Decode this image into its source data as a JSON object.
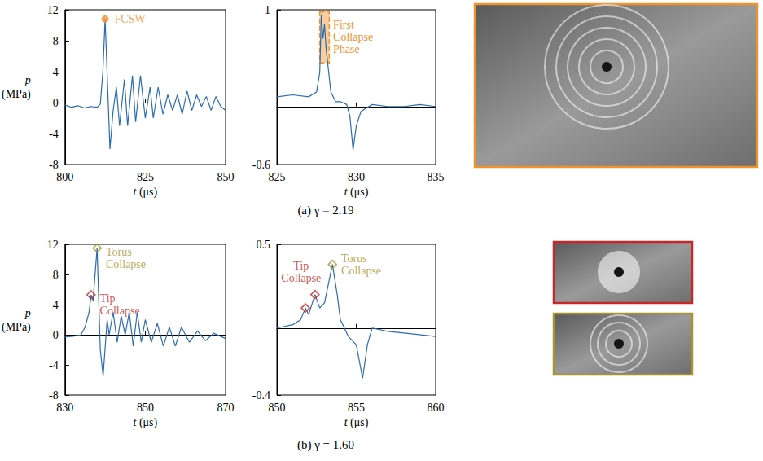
{
  "chart_data": [
    {
      "type": "line",
      "color": "#2b6cb0",
      "grid": false,
      "x_label": "t (μs)",
      "y_label": "p (MPa)",
      "xlim": [
        800,
        850
      ],
      "xticks": [
        800,
        825,
        850
      ],
      "ylim": [
        -8,
        12
      ],
      "yticks": [
        -8,
        -4,
        0,
        4,
        8,
        12
      ],
      "x": [
        800,
        802,
        804,
        806,
        808,
        810,
        811,
        811.8,
        812.5,
        813.2,
        814,
        815,
        816,
        817,
        818.5,
        819.5,
        821,
        822,
        823.5,
        825,
        826.5,
        827.5,
        829,
        830.5,
        832,
        833.5,
        835,
        836.5,
        838,
        839.5,
        841,
        842.5,
        844,
        845.5,
        847,
        848.5,
        850
      ],
      "values": [
        -0.3,
        -0.6,
        -0.4,
        -0.7,
        -0.5,
        -0.6,
        -0.2,
        4,
        10.8,
        3,
        -6,
        -1,
        2,
        -3,
        3,
        -3,
        3.5,
        -2.5,
        3.5,
        -2,
        2,
        -2,
        2,
        -1.5,
        1,
        -1,
        1,
        -1.5,
        1.5,
        -1,
        1,
        -0.5,
        0.8,
        -1,
        0.8,
        -0.5,
        -1
      ],
      "annotations": [
        {
          "text": "FCSW",
          "color": "#f0922e",
          "marker": "circle",
          "points": [
            [
              812.5,
              10.8
            ]
          ]
        }
      ]
    },
    {
      "type": "line",
      "color": "#2b6cb0",
      "grid": false,
      "x_label": "t (μs)",
      "xlim": [
        825,
        835
      ],
      "xticks": [
        825,
        830,
        835
      ],
      "ylim": [
        -0.6,
        1
      ],
      "yticks": [
        -0.6,
        1
      ],
      "x": [
        825,
        826,
        827,
        827.5,
        827.7,
        827.8,
        827.9,
        828,
        828.1,
        828.2,
        828.4,
        828.7,
        829,
        829.4,
        829.6,
        829.8,
        830,
        830.3,
        831,
        832,
        833,
        834,
        835
      ],
      "values": [
        0.1,
        0.12,
        0.1,
        0.15,
        0.35,
        0.95,
        0.7,
        0.85,
        0.6,
        0.45,
        0.15,
        0.05,
        0.05,
        0.02,
        -0.1,
        -0.45,
        -0.2,
        -0.05,
        0.02,
        0.0,
        0.0,
        0.02,
        0.0
      ],
      "annotations": [
        {
          "text": "First Collapse Phase",
          "color": "#f0922e",
          "box": {
            "x": [
              827.7,
              828.3
            ],
            "y": [
              0.45,
              0.98
            ]
          }
        }
      ]
    },
    {
      "type": "line",
      "color": "#2b6cb0",
      "grid": false,
      "x_label": "t (μs)",
      "y_label": "p (MPa)",
      "xlim": [
        830,
        870
      ],
      "xticks": [
        830,
        850,
        870
      ],
      "ylim": [
        -8,
        12
      ],
      "yticks": [
        -8,
        -4,
        0,
        4,
        8,
        12
      ],
      "x": [
        830,
        832,
        834,
        835,
        836,
        836.5,
        837,
        838,
        838.8,
        839.5,
        840.5,
        841,
        842,
        843,
        844,
        845,
        846,
        847,
        848,
        849,
        850,
        851.5,
        853,
        854.5,
        856,
        857.5,
        859,
        861,
        863,
        865,
        867,
        870
      ],
      "values": [
        -0.3,
        -0.2,
        0,
        1,
        3,
        5.3,
        4.5,
        11.5,
        -2,
        -5.5,
        2,
        0,
        3,
        -1,
        2.5,
        0,
        3,
        -1.5,
        3,
        -1,
        2,
        -1,
        1.5,
        -1.5,
        1,
        -1.5,
        1,
        -1,
        0.5,
        -0.8,
        0.2,
        -0.5
      ],
      "annotations": [
        {
          "text": "Tip Collapse",
          "color": "#c62828",
          "marker": "open-diamond",
          "points": [
            [
              836.5,
              5.3
            ]
          ]
        },
        {
          "text": "Torus Collapse",
          "color": "#a8942c",
          "marker": "open-diamond",
          "points": [
            [
              838,
              11.5
            ]
          ]
        }
      ]
    },
    {
      "type": "line",
      "color": "#2b6cb0",
      "grid": false,
      "x_label": "t (μs)",
      "xlim": [
        850,
        860
      ],
      "xticks": [
        850,
        855,
        860
      ],
      "ylim": [
        -0.4,
        0.5
      ],
      "yticks": [
        -0.4,
        0.5
      ],
      "x": [
        850,
        851,
        851.5,
        851.8,
        852,
        852.4,
        852.7,
        853,
        853.5,
        853.8,
        854,
        854.5,
        855,
        855.4,
        855.7,
        856,
        857,
        858,
        860
      ],
      "values": [
        0,
        0.02,
        0.05,
        0.12,
        0.08,
        0.2,
        0.12,
        0.15,
        0.38,
        0.2,
        0.05,
        -0.05,
        -0.1,
        -0.3,
        -0.1,
        0,
        -0.02,
        -0.03,
        -0.05
      ],
      "annotations": [
        {
          "text": "Tip Collapse",
          "color": "#c62828",
          "marker": "open-diamond",
          "points": [
            [
              851.8,
              0.12
            ],
            [
              852.4,
              0.2
            ]
          ]
        },
        {
          "text": "Torus Collapse",
          "color": "#a8942c",
          "marker": "open-diamond",
          "points": [
            [
              853.5,
              0.38
            ]
          ]
        }
      ]
    }
  ],
  "panels": [
    {
      "caption": "(a) γ = 2.19",
      "image_frames": [
        "#f0922e"
      ]
    },
    {
      "caption": "(b) γ = 1.60",
      "image_frames": [
        "#c62828",
        "#a8942c"
      ]
    }
  ]
}
